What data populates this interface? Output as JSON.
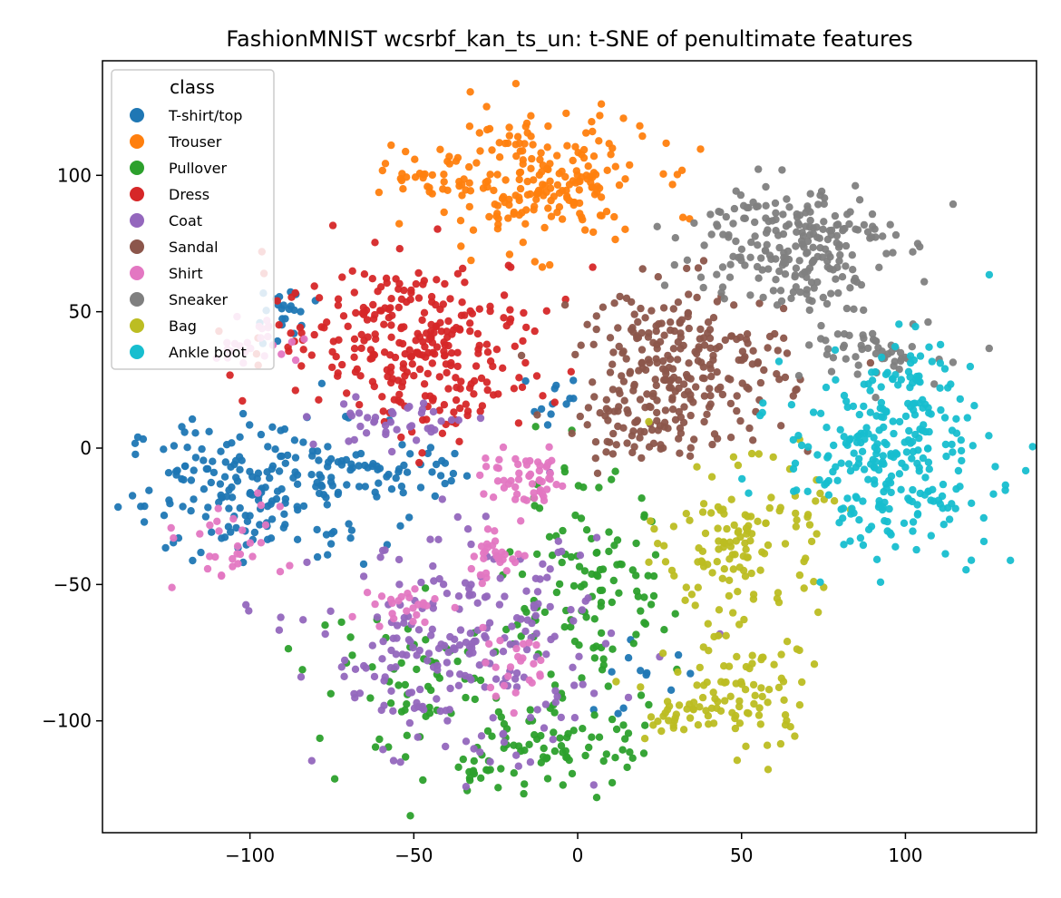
{
  "chart_data": {
    "type": "scatter",
    "title": "FashionMNIST wcsrbf_kan_ts_un: t-SNE of penultimate features",
    "xlabel": "",
    "ylabel": "",
    "xlim": [
      -145,
      140
    ],
    "ylim": [
      -141,
      142
    ],
    "xticks": [
      -100,
      -50,
      0,
      50,
      100
    ],
    "xtick_labels": [
      "−100",
      "−50",
      "0",
      "50",
      "100"
    ],
    "yticks": [
      -100,
      -50,
      0,
      50,
      100
    ],
    "ytick_labels": [
      "−100",
      "−50",
      "0",
      "50",
      "100"
    ],
    "grid": false,
    "legend": {
      "title": "class",
      "placement": "upper-left"
    },
    "series": [
      {
        "name": "T-shirt/top",
        "color": "#1f77b4",
        "clusters": [
          {
            "cx": -98,
            "cy": -15,
            "sx": 20,
            "sy": 13,
            "n": 190
          },
          {
            "cx": -62,
            "cy": -8,
            "sx": 12,
            "sy": 5,
            "n": 55
          },
          {
            "cx": -90,
            "cy": 48,
            "sx": 5,
            "sy": 6,
            "n": 22
          },
          {
            "cx": -5,
            "cy": 18,
            "sx": 4,
            "sy": 4,
            "n": 12
          },
          {
            "cx": 15,
            "cy": -85,
            "sx": 8,
            "sy": 8,
            "n": 12
          }
        ]
      },
      {
        "name": "Trouser",
        "color": "#ff7f0e",
        "clusters": [
          {
            "cx": -12,
            "cy": 98,
            "sx": 17,
            "sy": 12,
            "n": 210
          },
          {
            "cx": -45,
            "cy": 100,
            "sx": 7,
            "sy": 5,
            "n": 30
          }
        ]
      },
      {
        "name": "Pullover",
        "color": "#2ca02c",
        "clusters": [
          {
            "cx": 5,
            "cy": -55,
            "sx": 12,
            "sy": 22,
            "n": 120
          },
          {
            "cx": -10,
            "cy": -110,
            "sx": 15,
            "sy": 7,
            "n": 65
          },
          {
            "cx": -45,
            "cy": -85,
            "sx": 18,
            "sy": 15,
            "n": 70
          },
          {
            "cx": -30,
            "cy": -120,
            "sx": 5,
            "sy": 3,
            "n": 15
          }
        ]
      },
      {
        "name": "Dress",
        "color": "#d62728",
        "clusters": [
          {
            "cx": -50,
            "cy": 42,
            "sx": 22,
            "sy": 14,
            "n": 260
          },
          {
            "cx": -38,
            "cy": 15,
            "sx": 12,
            "sy": 6,
            "n": 40
          }
        ]
      },
      {
        "name": "Coat",
        "color": "#9467bd",
        "clusters": [
          {
            "cx": -35,
            "cy": -75,
            "sx": 22,
            "sy": 20,
            "n": 240
          },
          {
            "cx": -55,
            "cy": 10,
            "sx": 12,
            "sy": 5,
            "n": 40
          }
        ]
      },
      {
        "name": "Sandal",
        "color": "#8c564b",
        "clusters": [
          {
            "cx": 32,
            "cy": 30,
            "sx": 16,
            "sy": 15,
            "n": 260
          },
          {
            "cx": 18,
            "cy": 5,
            "sx": 10,
            "sy": 6,
            "n": 40
          }
        ]
      },
      {
        "name": "Shirt",
        "color": "#e377c2",
        "clusters": [
          {
            "cx": -15,
            "cy": -12,
            "sx": 7,
            "sy": 5,
            "n": 55
          },
          {
            "cx": -25,
            "cy": -40,
            "sx": 5,
            "sy": 4,
            "n": 30
          },
          {
            "cx": -100,
            "cy": 40,
            "sx": 8,
            "sy": 5,
            "n": 25
          },
          {
            "cx": -50,
            "cy": -58,
            "sx": 6,
            "sy": 4,
            "n": 25
          },
          {
            "cx": -110,
            "cy": -35,
            "sx": 10,
            "sy": 8,
            "n": 30
          },
          {
            "cx": -20,
            "cy": -80,
            "sx": 8,
            "sy": 6,
            "n": 25
          }
        ]
      },
      {
        "name": "Sneaker",
        "color": "#7f7f7f",
        "clusters": [
          {
            "cx": 65,
            "cy": 75,
            "sx": 15,
            "sy": 12,
            "n": 230
          },
          {
            "cx": 95,
            "cy": 35,
            "sx": 12,
            "sy": 6,
            "n": 55
          }
        ]
      },
      {
        "name": "Bag",
        "color": "#bcbd22",
        "clusters": [
          {
            "cx": 50,
            "cy": -35,
            "sx": 12,
            "sy": 14,
            "n": 130
          },
          {
            "cx": 48,
            "cy": -90,
            "sx": 12,
            "sy": 12,
            "n": 90
          },
          {
            "cx": 28,
            "cy": -100,
            "sx": 5,
            "sy": 4,
            "n": 20
          }
        ]
      },
      {
        "name": "Ankle boot",
        "color": "#17becf",
        "clusters": [
          {
            "cx": 95,
            "cy": -5,
            "sx": 16,
            "sy": 16,
            "n": 260
          },
          {
            "cx": 100,
            "cy": 30,
            "sx": 8,
            "sy": 6,
            "n": 30
          }
        ]
      }
    ]
  }
}
